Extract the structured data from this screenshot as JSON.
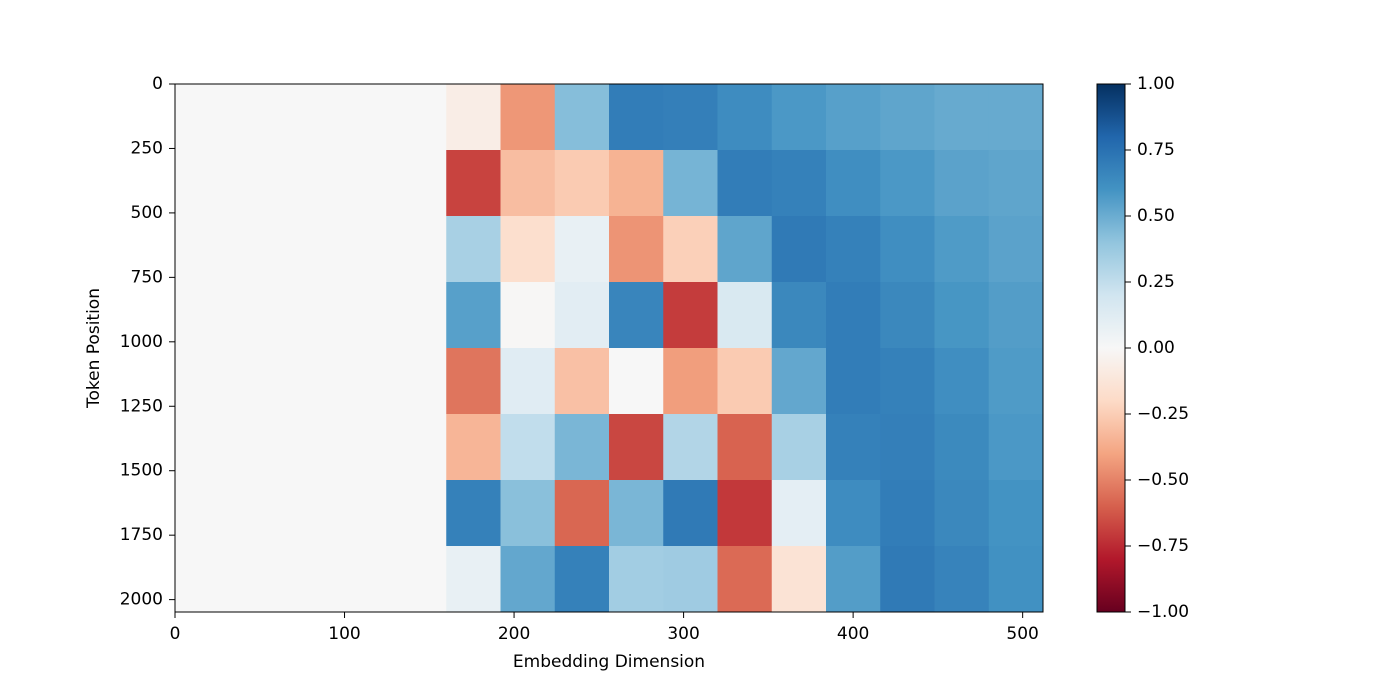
{
  "chart_data": {
    "type": "heatmap",
    "x_label": "Embedding Dimension",
    "y_label": "Token Position",
    "x_bins": [
      0,
      32,
      64,
      96,
      128,
      160,
      192,
      224,
      256,
      288,
      320,
      352,
      384,
      416,
      448,
      480,
      512
    ],
    "y_bins": [
      0,
      256,
      512,
      768,
      1024,
      1280,
      1536,
      1792,
      2048
    ],
    "z": [
      [
        0,
        0,
        0,
        0,
        0,
        -0.07,
        -0.44,
        0.43,
        0.7,
        0.69,
        0.63,
        0.58,
        0.55,
        0.53,
        0.51,
        0.51
      ],
      [
        0,
        0,
        0,
        0,
        0,
        -0.68,
        -0.31,
        -0.26,
        -0.35,
        0.47,
        0.7,
        0.68,
        0.62,
        0.58,
        0.54,
        0.53
      ],
      [
        0,
        0,
        0,
        0,
        0,
        0.33,
        -0.17,
        0.08,
        -0.45,
        -0.24,
        0.53,
        0.71,
        0.68,
        0.62,
        0.57,
        0.54
      ],
      [
        0,
        0,
        0,
        0,
        0,
        0.55,
        -0.01,
        0.11,
        0.66,
        -0.7,
        0.16,
        0.65,
        0.7,
        0.65,
        0.59,
        0.56
      ],
      [
        0,
        0,
        0,
        0,
        0,
        -0.54,
        0.12,
        -0.3,
        0.0,
        -0.42,
        -0.26,
        0.52,
        0.7,
        0.68,
        0.62,
        0.57
      ],
      [
        0,
        0,
        0,
        0,
        0,
        -0.34,
        0.25,
        0.46,
        -0.67,
        0.3,
        -0.59,
        0.33,
        0.68,
        0.69,
        0.64,
        0.58
      ],
      [
        0,
        0,
        0,
        0,
        0,
        0.68,
        0.42,
        -0.58,
        0.46,
        0.71,
        -0.71,
        0.1,
        0.63,
        0.7,
        0.65,
        0.6
      ],
      [
        0,
        0,
        0,
        0,
        0,
        0.08,
        0.52,
        0.68,
        0.35,
        0.36,
        -0.57,
        -0.14,
        0.56,
        0.71,
        0.67,
        0.61
      ]
    ],
    "xlim": [
      0,
      512
    ],
    "ylim": [
      2048,
      0
    ],
    "xticks": [
      0,
      100,
      200,
      300,
      400,
      500
    ],
    "yticks": [
      0,
      250,
      500,
      750,
      1000,
      1250,
      1500,
      1750,
      2000
    ],
    "colormap": [
      "#67001f",
      "#b2182b",
      "#d6604d",
      "#f4a582",
      "#fddbc7",
      "#f7f7f7",
      "#d1e5f0",
      "#92c5de",
      "#4393c3",
      "#2166ac",
      "#053061"
    ],
    "clim": [
      -1,
      1
    ],
    "cticks": [
      {
        "value": 1,
        "label": "1.00"
      },
      {
        "value": 0.75,
        "label": "0.75"
      },
      {
        "value": 0.5,
        "label": "0.50"
      },
      {
        "value": 0.25,
        "label": "0.25"
      },
      {
        "value": 0,
        "label": "0.00"
      },
      {
        "value": -0.25,
        "label": "−0.25"
      },
      {
        "value": -0.5,
        "label": "−0.50"
      },
      {
        "value": -0.75,
        "label": "−0.75"
      },
      {
        "value": -1,
        "label": "−1.00"
      }
    ]
  }
}
